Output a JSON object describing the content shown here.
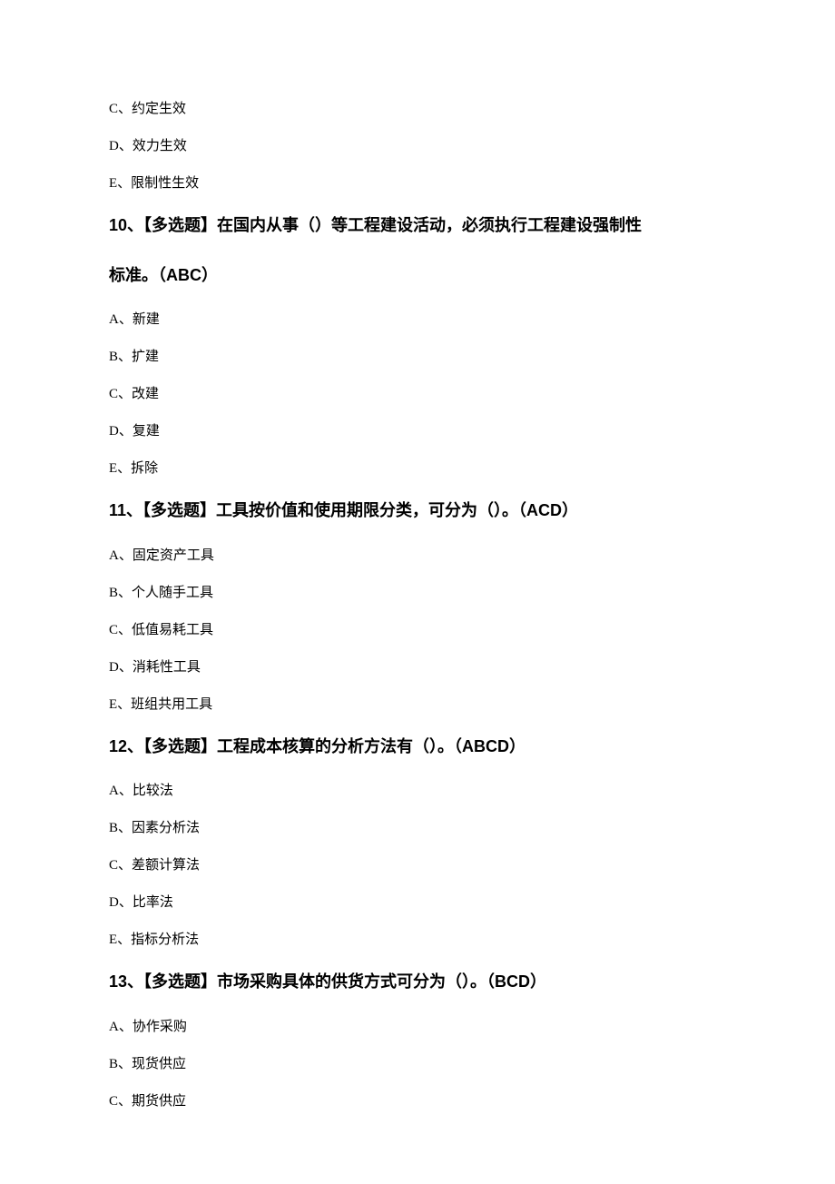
{
  "page": {
    "background_color": "#ffffff",
    "text_color": "#000000",
    "option_fontsize": 15,
    "heading_fontsize": 18
  },
  "leading_options": {
    "c": "C、约定生效",
    "d": "D、效力生效",
    "e": "E、限制性生效"
  },
  "q10": {
    "heading_line1": "10、【多选题】在国内从事（）等工程建设活动，必须执行工程建设强制性",
    "heading_line2": "标准。（ABC）",
    "options": {
      "a": "A、新建",
      "b": "B、扩建",
      "c": "C、改建",
      "d": "D、复建",
      "e": "E、拆除"
    }
  },
  "q11": {
    "heading": "11、【多选题】工具按价值和使用期限分类，可分为（）。（ACD）",
    "options": {
      "a": "A、固定资产工具",
      "b": "B、个人随手工具",
      "c": "C、低值易耗工具",
      "d": "D、消耗性工具",
      "e": "E、班组共用工具"
    }
  },
  "q12": {
    "heading": "12、【多选题】工程成本核算的分析方法有（）。（ABCD）",
    "options": {
      "a": "A、比较法",
      "b": "B、因素分析法",
      "c": "C、差额计算法",
      "d": "D、比率法",
      "e": "E、指标分析法"
    }
  },
  "q13": {
    "heading": "13、【多选题】市场采购具体的供货方式可分为（）。（BCD）",
    "options": {
      "a": "A、协作采购",
      "b": "B、现货供应",
      "c": "C、期货供应"
    }
  }
}
